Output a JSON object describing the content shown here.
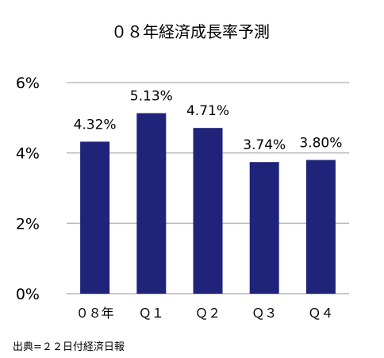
{
  "chart_data": {
    "type": "bar",
    "title": "０８年経済成長率予測",
    "categories": [
      "０８年",
      "Ｑ１",
      "Ｑ２",
      "Ｑ３",
      "Ｑ４"
    ],
    "values": [
      4.32,
      5.13,
      4.71,
      3.74,
      3.8
    ],
    "data_labels": [
      "4.32%",
      "5.13%",
      "4.71%",
      "3.74%",
      "3.80%"
    ],
    "ylim": [
      0,
      6
    ],
    "yticks": [
      {
        "value": 0,
        "label": "0%"
      },
      {
        "value": 2,
        "label": "2%"
      },
      {
        "value": 4,
        "label": "4%"
      },
      {
        "value": 6,
        "label": "6%"
      }
    ],
    "xlabel": "",
    "ylabel": "",
    "grid": true,
    "legend": "none",
    "bar_color": "#1f237a",
    "grid_color": "#b8b8b8"
  },
  "source_note": "出典=２２日付経済日報"
}
